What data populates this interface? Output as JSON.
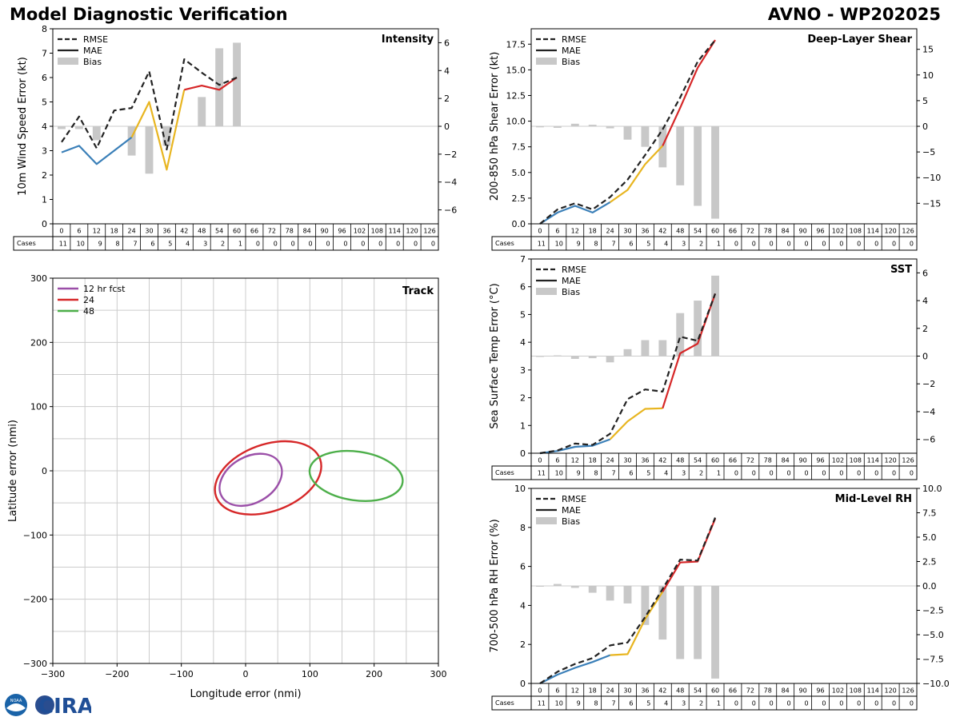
{
  "header": {
    "title": "Model Diagnostic Verification",
    "storm": "AVNO - WP202025"
  },
  "footer": {
    "logo_text": "CIRA",
    "noaa_text": "NOAA"
  },
  "colors": {
    "early": "#3a7fb8",
    "mid": "#e8b520",
    "late": "#d62728",
    "rmse": "#222222",
    "bias": "#c8c8c8",
    "grid": "#cccccc",
    "track12": "#9b4fa8",
    "track24": "#d62728",
    "track48": "#4daf4a"
  },
  "chart_data": [
    {
      "id": "intensity",
      "type": "line",
      "title": "Intensity",
      "ylabel": "10m Wind Speed Error (kt)",
      "ylim": [
        0,
        8
      ],
      "yticks": [
        0,
        1,
        2,
        3,
        4,
        5,
        6,
        7,
        8
      ],
      "ytick_labels": [
        "0",
        "1",
        "2",
        "3",
        "4",
        "5",
        "6",
        "7",
        "8"
      ],
      "y2lim": [
        -7,
        7
      ],
      "y2ticks": [
        -6,
        -4,
        -2,
        0,
        2,
        4,
        6
      ],
      "y2tick_labels": [
        "−6",
        "−4",
        "−2",
        "0",
        "2",
        "4",
        "6"
      ],
      "legend": [
        "RMSE",
        "MAE",
        "Bias"
      ],
      "x": [
        0,
        6,
        12,
        18,
        24,
        30,
        36,
        42,
        48,
        54,
        60
      ],
      "rmse": [
        3.35,
        4.4,
        3.1,
        4.65,
        4.75,
        6.25,
        3.05,
        6.75,
        6.2,
        5.7,
        6.0
      ],
      "mae": [
        2.93,
        3.2,
        2.45,
        3.0,
        3.55,
        5.0,
        2.22,
        5.5,
        5.67,
        5.5,
        6.0
      ],
      "bias": [
        -0.2,
        -0.2,
        -1.0,
        null,
        -2.1,
        -3.4,
        -1.4,
        null,
        2.1,
        5.6,
        6.0
      ],
      "cases": [
        11,
        10,
        9,
        8,
        7,
        6,
        5,
        4,
        3,
        2,
        1,
        0,
        0,
        0,
        0,
        0,
        0,
        0,
        0,
        0,
        0,
        0
      ]
    },
    {
      "id": "shear",
      "type": "line",
      "title": "Deep-Layer Shear",
      "ylabel": "200-850 hPa Shear Error (kt)",
      "ylim": [
        0,
        19
      ],
      "yticks": [
        0,
        2.5,
        5,
        7.5,
        10,
        12.5,
        15,
        17.5
      ],
      "ytick_labels": [
        "0.0",
        "2.5",
        "5.0",
        "7.5",
        "10.0",
        "12.5",
        "15.0",
        "17.5"
      ],
      "y2lim": [
        -19,
        19
      ],
      "y2ticks": [
        -15,
        -10,
        -5,
        0,
        5,
        10,
        15
      ],
      "y2tick_labels": [
        "−15",
        "−10",
        "−5",
        "0",
        "5",
        "10",
        "15"
      ],
      "legend": [
        "RMSE",
        "MAE",
        "Bias"
      ],
      "x": [
        0,
        6,
        12,
        18,
        24,
        30,
        36,
        42,
        48,
        54,
        60
      ],
      "rmse": [
        0.0,
        1.4,
        2.0,
        1.4,
        2.6,
        4.3,
        6.7,
        9.2,
        12.3,
        15.8,
        17.9
      ],
      "mae": [
        0.0,
        1.1,
        1.75,
        1.1,
        2.1,
        3.3,
        5.8,
        7.6,
        11.3,
        15.2,
        17.9
      ],
      "bias": [
        -0.2,
        -0.3,
        0.5,
        0.3,
        -0.4,
        -2.6,
        -4.0,
        -8.0,
        -11.5,
        -15.5,
        -18.0
      ],
      "cases": [
        11,
        10,
        9,
        8,
        7,
        6,
        5,
        4,
        3,
        2,
        1,
        0,
        0,
        0,
        0,
        0,
        0,
        0,
        0,
        0,
        0,
        0
      ]
    },
    {
      "id": "sst",
      "type": "line",
      "title": "SST",
      "ylabel": "Sea Surface Temp Error (°C)",
      "ylim": [
        0,
        7
      ],
      "yticks": [
        0,
        1,
        2,
        3,
        4,
        5,
        6,
        7
      ],
      "ytick_labels": [
        "0",
        "1",
        "2",
        "3",
        "4",
        "5",
        "6",
        "7"
      ],
      "y2lim": [
        -7,
        7
      ],
      "y2ticks": [
        -6,
        -4,
        -2,
        0,
        2,
        4,
        6
      ],
      "y2tick_labels": [
        "−6",
        "−4",
        "−2",
        "0",
        "2",
        "4",
        "6"
      ],
      "legend": [
        "RMSE",
        "MAE",
        "Bias"
      ],
      "x": [
        0,
        6,
        12,
        18,
        24,
        30,
        36,
        42,
        48,
        54,
        60
      ],
      "rmse": [
        0.0,
        0.1,
        0.35,
        0.3,
        0.7,
        1.95,
        2.3,
        2.22,
        4.2,
        4.05,
        5.75
      ],
      "mae": [
        0.0,
        0.08,
        0.23,
        0.27,
        0.5,
        1.15,
        1.6,
        1.62,
        3.6,
        3.95,
        5.75
      ],
      "bias": [
        0.0,
        0.05,
        -0.2,
        -0.15,
        -0.45,
        0.5,
        1.15,
        1.15,
        3.1,
        4.0,
        5.8
      ],
      "cases": [
        11,
        10,
        9,
        8,
        7,
        6,
        5,
        4,
        3,
        2,
        1,
        0,
        0,
        0,
        0,
        0,
        0,
        0,
        0,
        0,
        0,
        0
      ]
    },
    {
      "id": "rh",
      "type": "line",
      "title": "Mid-Level RH",
      "ylabel": "700-500 hPa RH Error (%)",
      "ylim": [
        0,
        10
      ],
      "yticks": [
        0,
        2,
        4,
        6,
        8,
        10
      ],
      "ytick_labels": [
        "0",
        "2",
        "4",
        "6",
        "8",
        "10"
      ],
      "y2lim": [
        -10,
        10
      ],
      "y2ticks": [
        -10,
        -7.5,
        -5,
        -2.5,
        0,
        2.5,
        5,
        7.5,
        10
      ],
      "y2tick_labels": [
        "−10.0",
        "−7.5",
        "−5.0",
        "−2.5",
        "0.0",
        "2.5",
        "5.0",
        "7.5",
        "10.0"
      ],
      "legend": [
        "RMSE",
        "MAE",
        "Bias"
      ],
      "x": [
        0,
        6,
        12,
        18,
        24,
        30,
        36,
        42,
        48,
        54,
        60
      ],
      "rmse": [
        0.0,
        0.6,
        1.0,
        1.3,
        1.95,
        2.1,
        3.4,
        4.85,
        6.35,
        6.3,
        8.5
      ],
      "mae": [
        0.0,
        0.45,
        0.8,
        1.1,
        1.45,
        1.5,
        3.3,
        4.7,
        6.2,
        6.25,
        8.45
      ],
      "bias": [
        0.0,
        0.2,
        -0.2,
        -0.7,
        -1.5,
        -1.8,
        -4.0,
        -5.5,
        -7.5,
        -7.5,
        -9.5
      ],
      "cases": [
        11,
        10,
        9,
        8,
        7,
        6,
        5,
        4,
        3,
        2,
        1,
        0,
        0,
        0,
        0,
        0,
        0,
        0,
        0,
        0,
        0,
        0
      ]
    },
    {
      "id": "track",
      "type": "scatter",
      "title": "Track",
      "xlabel": "Longitude error (nmi)",
      "ylabel": "Latitude error (nmi)",
      "xlim": [
        -300,
        300
      ],
      "ylim": [
        -300,
        300
      ],
      "xticks": [
        -300,
        -200,
        -100,
        0,
        100,
        200,
        300
      ],
      "xtick_labels": [
        "−300",
        "−200",
        "−100",
        "0",
        "100",
        "200",
        "300"
      ],
      "yticks": [
        -300,
        -200,
        -100,
        0,
        100,
        200,
        300
      ],
      "ytick_labels": [
        "−300",
        "−200",
        "−100",
        "0",
        "100",
        "200",
        "300"
      ],
      "legend": [
        "12 hr fcst",
        "24",
        "48"
      ],
      "ellipses": [
        {
          "label": "12 hr fcst",
          "cx": 8,
          "cy": -14,
          "rx": 52,
          "ry": 36,
          "angle": 30
        },
        {
          "label": "24",
          "cx": 35,
          "cy": -11,
          "rx": 86,
          "ry": 52,
          "angle": 20
        },
        {
          "label": "48",
          "cx": 172,
          "cy": -8,
          "rx": 73,
          "ry": 38,
          "angle": -8
        }
      ]
    }
  ],
  "case_axis": {
    "row_label": "Cases",
    "hours": [
      "0",
      "6",
      "12",
      "18",
      "24",
      "30",
      "36",
      "42",
      "48",
      "54",
      "60",
      "66",
      "72",
      "78",
      "84",
      "90",
      "96",
      "102",
      "108",
      "114",
      "120",
      "126"
    ]
  }
}
